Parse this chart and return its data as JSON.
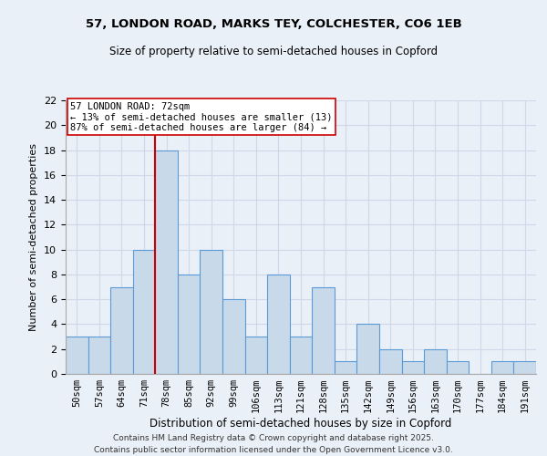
{
  "title1": "57, LONDON ROAD, MARKS TEY, COLCHESTER, CO6 1EB",
  "title2": "Size of property relative to semi-detached houses in Copford",
  "xlabel": "Distribution of semi-detached houses by size in Copford",
  "ylabel": "Number of semi-detached properties",
  "categories": [
    "50sqm",
    "57sqm",
    "64sqm",
    "71sqm",
    "78sqm",
    "85sqm",
    "92sqm",
    "99sqm",
    "106sqm",
    "113sqm",
    "121sqm",
    "128sqm",
    "135sqm",
    "142sqm",
    "149sqm",
    "156sqm",
    "163sqm",
    "170sqm",
    "177sqm",
    "184sqm",
    "191sqm"
  ],
  "values": [
    3,
    3,
    7,
    10,
    18,
    8,
    10,
    6,
    3,
    8,
    3,
    7,
    1,
    4,
    2,
    1,
    2,
    1,
    0,
    1,
    1
  ],
  "bar_color": "#c8d9ea",
  "bar_edge_color": "#5b9bd5",
  "grid_color": "#d0d8e8",
  "vline_x": 3.5,
  "vline_color": "#cc0000",
  "annotation_text": "57 LONDON ROAD: 72sqm\n← 13% of semi-detached houses are smaller (13)\n87% of semi-detached houses are larger (84) →",
  "annotation_box_color": "#ffffff",
  "annotation_box_edge_color": "#cc0000",
  "footer": "Contains HM Land Registry data © Crown copyright and database right 2025.\nContains public sector information licensed under the Open Government Licence v3.0.",
  "ylim": [
    0,
    22
  ],
  "yticks": [
    0,
    2,
    4,
    6,
    8,
    10,
    12,
    14,
    16,
    18,
    20,
    22
  ],
  "background_color": "#eaf0f8",
  "title_fontsize": 9.5,
  "subtitle_fontsize": 8.5
}
